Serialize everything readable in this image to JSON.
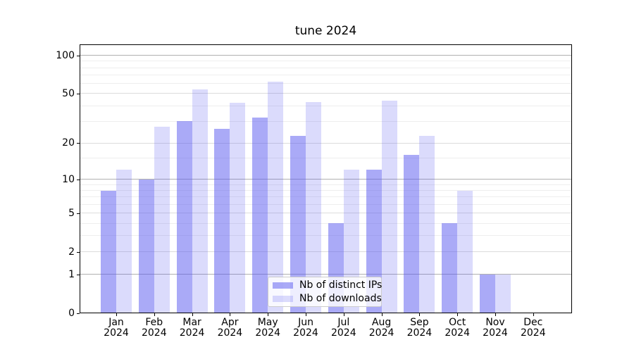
{
  "title": "tune 2024",
  "chart_data": {
    "type": "bar",
    "title": "tune 2024",
    "year_label": "2024",
    "categories": [
      "Jan",
      "Feb",
      "Mar",
      "Apr",
      "May",
      "Jun",
      "Jul",
      "Aug",
      "Sep",
      "Oct",
      "Nov",
      "Dec"
    ],
    "series": [
      {
        "name": "Nb of distinct IPs",
        "color": "rgba(85,85,240,0.5)",
        "values": [
          8,
          10,
          30,
          26,
          32,
          23,
          4,
          12,
          16,
          4,
          1,
          0
        ]
      },
      {
        "name": "Nb of downloads",
        "color": "rgba(85,85,240,0.21)",
        "values": [
          12,
          27,
          54,
          42,
          62,
          43,
          12,
          44,
          23,
          8,
          1,
          0
        ]
      }
    ],
    "xlabel": "",
    "ylabel": "",
    "yscale": "log1p",
    "ylim": [
      0,
      122
    ],
    "y_major_ticks": [
      0,
      1,
      2,
      5,
      10,
      20,
      50,
      100
    ],
    "y_minor_ticks": [
      3,
      4,
      6,
      7,
      8,
      9,
      15,
      30,
      40,
      60,
      70,
      80,
      90
    ],
    "grid": true,
    "legend_position": "lower center"
  },
  "colors": {
    "grid_decade": "#b0b0b0",
    "grid_major": "#dcdcdc",
    "grid_minor": "#eeeeee",
    "axis": "#000000",
    "background": "#ffffff"
  }
}
